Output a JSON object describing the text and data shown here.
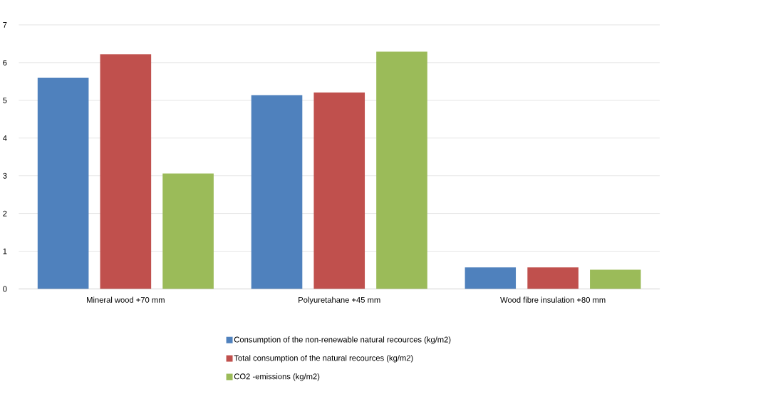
{
  "chart_data": {
    "type": "bar",
    "categories": [
      "Mineral wood +70 mm",
      "Polyuretahane +45 mm",
      "Wood fibre insulation +80 mm"
    ],
    "series": [
      {
        "name": "Consumption of the non-renewable natural recources (kg/m2)",
        "color": "#4f81bd",
        "values": [
          5.6,
          5.14,
          0.57
        ]
      },
      {
        "name": "Total consumption of the natural recources (kg/m2)",
        "color": "#c0504d",
        "values": [
          6.22,
          5.21,
          0.57
        ]
      },
      {
        "name": "CO2 -emissions (kg/m2)",
        "color": "#9bbb59",
        "values": [
          3.06,
          6.29,
          0.51
        ]
      }
    ],
    "ylim": [
      0,
      7
    ],
    "yticks": [
      0,
      1,
      2,
      3,
      4,
      5,
      6,
      7
    ],
    "grid": "y",
    "legend": "bottom"
  }
}
